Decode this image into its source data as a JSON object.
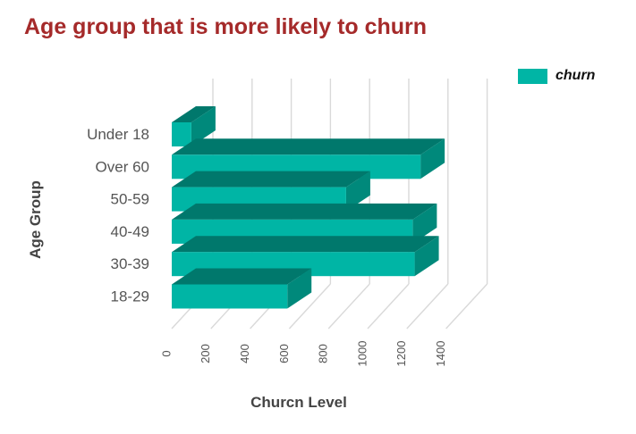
{
  "chart_data": {
    "type": "bar",
    "orientation": "horizontal",
    "style": "3d",
    "title": "Age group that is more likely to churn",
    "xlabel": "Churcn Level",
    "ylabel": "Age Group",
    "categories": [
      "Under 18",
      "Over 60",
      "50-59",
      "40-49",
      "30-39",
      "18-29"
    ],
    "series": [
      {
        "name": "churn",
        "values": [
          100,
          1270,
          890,
          1230,
          1240,
          590
        ]
      }
    ],
    "xlim": [
      0,
      1400
    ],
    "xticks": [
      "0",
      "200",
      "400",
      "600",
      "800",
      "1000",
      "1200",
      "1400"
    ],
    "grid": true,
    "legend_position": "top-right",
    "colors": {
      "bar_front": "#00b5a5",
      "bar_side": "#00897b",
      "bar_top": "#00786c",
      "grid": "#d9d9d9",
      "title": "#a52a2a"
    }
  }
}
